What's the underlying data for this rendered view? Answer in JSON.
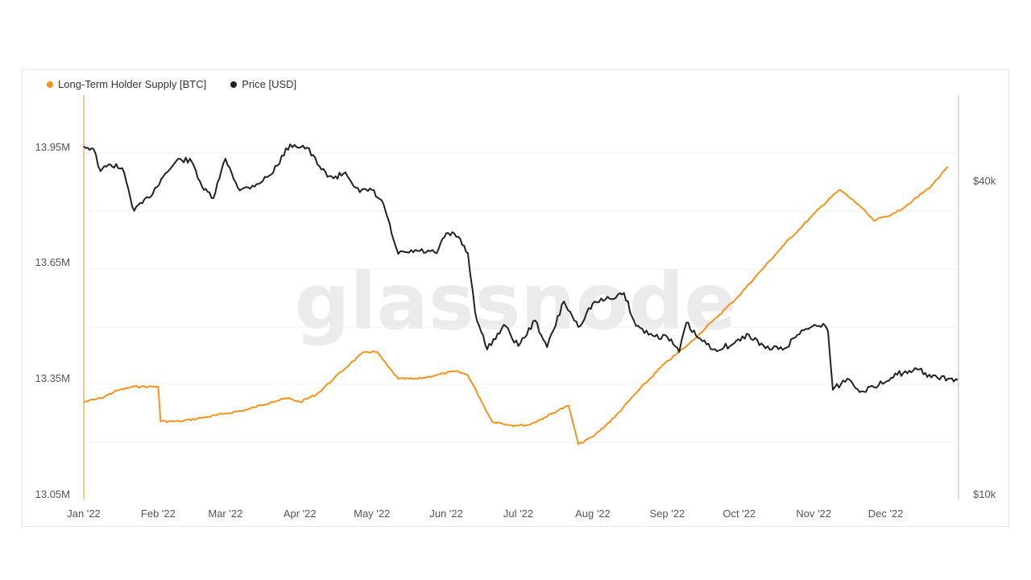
{
  "chart_data": {
    "type": "line",
    "watermark": "glassnode",
    "x_ticks": [
      "Jan '22",
      "Feb '22",
      "Mar '22",
      "Apr '22",
      "May '22",
      "Jun '22",
      "Jul '22",
      "Aug '22",
      "Sep '22",
      "Oct '22",
      "Nov '22",
      "Dec '22"
    ],
    "y_left_ticks": [
      "13.95M",
      "13.65M",
      "13.35M",
      "13.05M"
    ],
    "y_right_ticks": [
      "$40k",
      "$10k"
    ],
    "y_left_range": [
      13.05,
      13.95
    ],
    "legend_position": "top-left",
    "series": [
      {
        "name": "Long-Term Holder Supply [BTC]",
        "axis": "left",
        "color": "#f7931a",
        "points": [
          [
            "2022-01-01",
            13.29
          ],
          [
            "2022-01-08",
            13.3
          ],
          [
            "2022-01-15",
            13.32
          ],
          [
            "2022-01-22",
            13.33
          ],
          [
            "2022-01-28",
            13.33
          ],
          [
            "2022-02-01",
            13.33
          ],
          [
            "2022-02-02",
            13.24
          ],
          [
            "2022-02-10",
            13.24
          ],
          [
            "2022-02-20",
            13.25
          ],
          [
            "2022-03-01",
            13.26
          ],
          [
            "2022-03-10",
            13.27
          ],
          [
            "2022-03-20",
            13.29
          ],
          [
            "2022-03-27",
            13.3
          ],
          [
            "2022-04-01",
            13.29
          ],
          [
            "2022-04-08",
            13.31
          ],
          [
            "2022-04-15",
            13.35
          ],
          [
            "2022-04-22",
            13.39
          ],
          [
            "2022-04-28",
            13.42
          ],
          [
            "2022-05-03",
            13.42
          ],
          [
            "2022-05-08",
            13.38
          ],
          [
            "2022-05-12",
            13.35
          ],
          [
            "2022-05-20",
            13.35
          ],
          [
            "2022-05-28",
            13.36
          ],
          [
            "2022-06-05",
            13.37
          ],
          [
            "2022-06-10",
            13.36
          ],
          [
            "2022-06-15",
            13.3
          ],
          [
            "2022-06-20",
            13.24
          ],
          [
            "2022-06-28",
            13.23
          ],
          [
            "2022-07-05",
            13.23
          ],
          [
            "2022-07-12",
            13.25
          ],
          [
            "2022-07-18",
            13.27
          ],
          [
            "2022-07-22",
            13.28
          ],
          [
            "2022-07-24",
            13.23
          ],
          [
            "2022-07-26",
            13.18
          ],
          [
            "2022-08-01",
            13.2
          ],
          [
            "2022-08-10",
            13.25
          ],
          [
            "2022-08-20",
            13.32
          ],
          [
            "2022-08-31",
            13.39
          ],
          [
            "2022-09-10",
            13.44
          ],
          [
            "2022-09-20",
            13.5
          ],
          [
            "2022-09-30",
            13.56
          ],
          [
            "2022-10-10",
            13.63
          ],
          [
            "2022-10-20",
            13.7
          ],
          [
            "2022-10-31",
            13.77
          ],
          [
            "2022-11-08",
            13.82
          ],
          [
            "2022-11-12",
            13.84
          ],
          [
            "2022-11-20",
            13.8
          ],
          [
            "2022-11-26",
            13.76
          ],
          [
            "2022-12-05",
            13.78
          ],
          [
            "2022-12-12",
            13.81
          ],
          [
            "2022-12-20",
            13.85
          ],
          [
            "2022-12-27",
            13.9
          ]
        ]
      },
      {
        "name": "Price [USD]",
        "axis": "right",
        "color": "#222222",
        "points": [
          [
            "2022-01-01",
            46700
          ],
          [
            "2022-01-05",
            46200
          ],
          [
            "2022-01-08",
            41800
          ],
          [
            "2022-01-12",
            43100
          ],
          [
            "2022-01-17",
            42400
          ],
          [
            "2022-01-22",
            35100
          ],
          [
            "2022-01-28",
            37200
          ],
          [
            "2022-02-04",
            41400
          ],
          [
            "2022-02-10",
            44200
          ],
          [
            "2022-02-15",
            43600
          ],
          [
            "2022-02-20",
            38500
          ],
          [
            "2022-02-24",
            37100
          ],
          [
            "2022-03-01",
            44200
          ],
          [
            "2022-03-07",
            38400
          ],
          [
            "2022-03-14",
            39500
          ],
          [
            "2022-03-20",
            41200
          ],
          [
            "2022-03-28",
            47100
          ],
          [
            "2022-04-04",
            46400
          ],
          [
            "2022-04-10",
            42100
          ],
          [
            "2022-04-15",
            40500
          ],
          [
            "2022-04-20",
            41600
          ],
          [
            "2022-04-26",
            38100
          ],
          [
            "2022-05-01",
            38500
          ],
          [
            "2022-05-06",
            36000
          ],
          [
            "2022-05-10",
            30900
          ],
          [
            "2022-05-12",
            29000
          ],
          [
            "2022-05-20",
            29400
          ],
          [
            "2022-05-28",
            29100
          ],
          [
            "2022-06-01",
            31800
          ],
          [
            "2022-06-06",
            31300
          ],
          [
            "2022-06-10",
            29100
          ],
          [
            "2022-06-13",
            22400
          ],
          [
            "2022-06-18",
            19000
          ],
          [
            "2022-06-25",
            21200
          ],
          [
            "2022-07-01",
            19300
          ],
          [
            "2022-07-08",
            21600
          ],
          [
            "2022-07-13",
            19200
          ],
          [
            "2022-07-20",
            23500
          ],
          [
            "2022-07-26",
            21000
          ],
          [
            "2022-08-01",
            23300
          ],
          [
            "2022-08-08",
            23800
          ],
          [
            "2022-08-14",
            24400
          ],
          [
            "2022-08-19",
            21100
          ],
          [
            "2022-08-26",
            20200
          ],
          [
            "2022-09-01",
            20100
          ],
          [
            "2022-09-06",
            18800
          ],
          [
            "2022-09-09",
            21400
          ],
          [
            "2022-09-13",
            20200
          ],
          [
            "2022-09-20",
            19000
          ],
          [
            "2022-09-28",
            19400
          ],
          [
            "2022-10-05",
            20300
          ],
          [
            "2022-10-12",
            19100
          ],
          [
            "2022-10-20",
            19100
          ],
          [
            "2022-10-27",
            20700
          ],
          [
            "2022-11-05",
            21300
          ],
          [
            "2022-11-07",
            20600
          ],
          [
            "2022-11-09",
            15900
          ],
          [
            "2022-11-15",
            16700
          ],
          [
            "2022-11-21",
            15800
          ],
          [
            "2022-11-28",
            16200
          ],
          [
            "2022-12-05",
            17100
          ],
          [
            "2022-12-10",
            17100
          ],
          [
            "2022-12-15",
            17400
          ],
          [
            "2022-12-20",
            16800
          ],
          [
            "2022-12-27",
            16700
          ],
          [
            "2022-12-31",
            16600
          ]
        ]
      }
    ]
  }
}
